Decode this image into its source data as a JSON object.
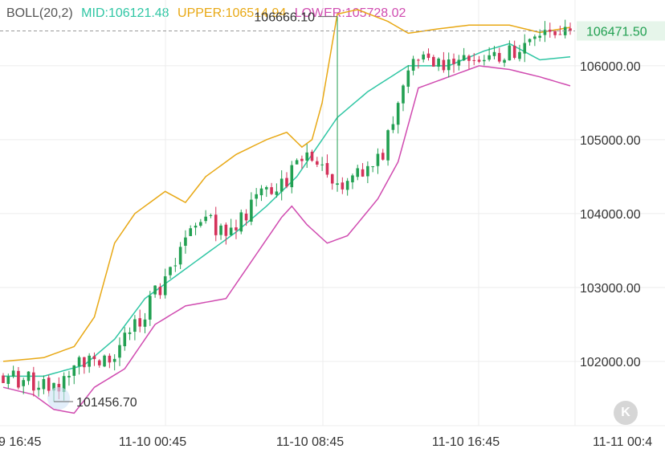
{
  "legend": {
    "indicator": "BOLL(20,2)",
    "mid": "MID:106121.48",
    "upper": "UPPER:106514.94",
    "lower": "LOWER:105728.02"
  },
  "colors": {
    "up": "#22a052",
    "down": "#d4325a",
    "mid": "#2fc6a4",
    "upper": "#e8a814",
    "lower": "#d04bb0",
    "grid": "#ececec",
    "axis_text": "#333333",
    "current_price_bg": "#e6f5ea",
    "current_price_text": "#22a052",
    "dashed_line": "#9a9a9a"
  },
  "chart_data": {
    "type": "candlestick",
    "indicator": "BOLL(20,2)",
    "y_axis_ticks": [
      106000,
      105000,
      104000,
      103000,
      102000
    ],
    "y_tick_labels": [
      "106000.00",
      "105000.00",
      "104000.00",
      "103000.00",
      "102000.00"
    ],
    "x_tick_labels": [
      "9 16:45",
      "11-10 00:45",
      "11-10 08:45",
      "11-10 16:45",
      "11-11 00:4"
    ],
    "ylim": [
      101130,
      106890
    ],
    "current_price": 106471.5,
    "current_price_label": "106471.50",
    "max_label": "106666.10",
    "min_label": "101456.70",
    "candle_count": 113,
    "close_anchors": [
      [
        0,
        101800
      ],
      [
        8,
        101700
      ],
      [
        12,
        101700
      ],
      [
        16,
        102000
      ],
      [
        22,
        102050
      ],
      [
        30,
        102900
      ],
      [
        38,
        103900
      ],
      [
        45,
        103800
      ],
      [
        52,
        104300
      ],
      [
        60,
        104700
      ],
      [
        68,
        104400
      ],
      [
        75,
        104800
      ],
      [
        82,
        106200
      ],
      [
        90,
        106000
      ],
      [
        100,
        106150
      ],
      [
        104,
        106300
      ],
      [
        112,
        106471
      ]
    ],
    "upper_anchors": [
      [
        0,
        102000
      ],
      [
        8,
        102050
      ],
      [
        14,
        102200
      ],
      [
        18,
        102600
      ],
      [
        22,
        103600
      ],
      [
        26,
        104000
      ],
      [
        32,
        104300
      ],
      [
        36,
        104150
      ],
      [
        40,
        104500
      ],
      [
        46,
        104800
      ],
      [
        52,
        105000
      ],
      [
        56,
        105100
      ],
      [
        59,
        104900
      ],
      [
        61,
        105000
      ],
      [
        63,
        105500
      ],
      [
        66,
        106700
      ],
      [
        70,
        106760
      ],
      [
        76,
        106600
      ],
      [
        80,
        106440
      ],
      [
        86,
        106500
      ],
      [
        92,
        106550
      ],
      [
        100,
        106550
      ],
      [
        106,
        106450
      ],
      [
        112,
        106520
      ]
    ],
    "mid_anchors": [
      [
        0,
        101800
      ],
      [
        8,
        101800
      ],
      [
        16,
        101950
      ],
      [
        22,
        102300
      ],
      [
        28,
        102850
      ],
      [
        34,
        103150
      ],
      [
        40,
        103450
      ],
      [
        46,
        103750
      ],
      [
        52,
        104100
      ],
      [
        58,
        104500
      ],
      [
        62,
        104900
      ],
      [
        66,
        105300
      ],
      [
        72,
        105650
      ],
      [
        80,
        106000
      ],
      [
        88,
        106000
      ],
      [
        95,
        106200
      ],
      [
        100,
        106300
      ],
      [
        106,
        106080
      ],
      [
        112,
        106121
      ]
    ],
    "lower_anchors": [
      [
        0,
        101650
      ],
      [
        6,
        101550
      ],
      [
        10,
        101350
      ],
      [
        14,
        101300
      ],
      [
        18,
        101650
      ],
      [
        24,
        101900
      ],
      [
        30,
        102500
      ],
      [
        36,
        102750
      ],
      [
        40,
        102800
      ],
      [
        44,
        102850
      ],
      [
        48,
        103250
      ],
      [
        52,
        103650
      ],
      [
        55,
        103950
      ],
      [
        57,
        104100
      ],
      [
        60,
        103850
      ],
      [
        64,
        103600
      ],
      [
        68,
        103700
      ],
      [
        74,
        104200
      ],
      [
        78,
        104700
      ],
      [
        82,
        105700
      ],
      [
        88,
        105850
      ],
      [
        94,
        106000
      ],
      [
        100,
        105950
      ],
      [
        106,
        105850
      ],
      [
        112,
        105728
      ]
    ]
  },
  "buttons": {
    "k_label": "K"
  }
}
